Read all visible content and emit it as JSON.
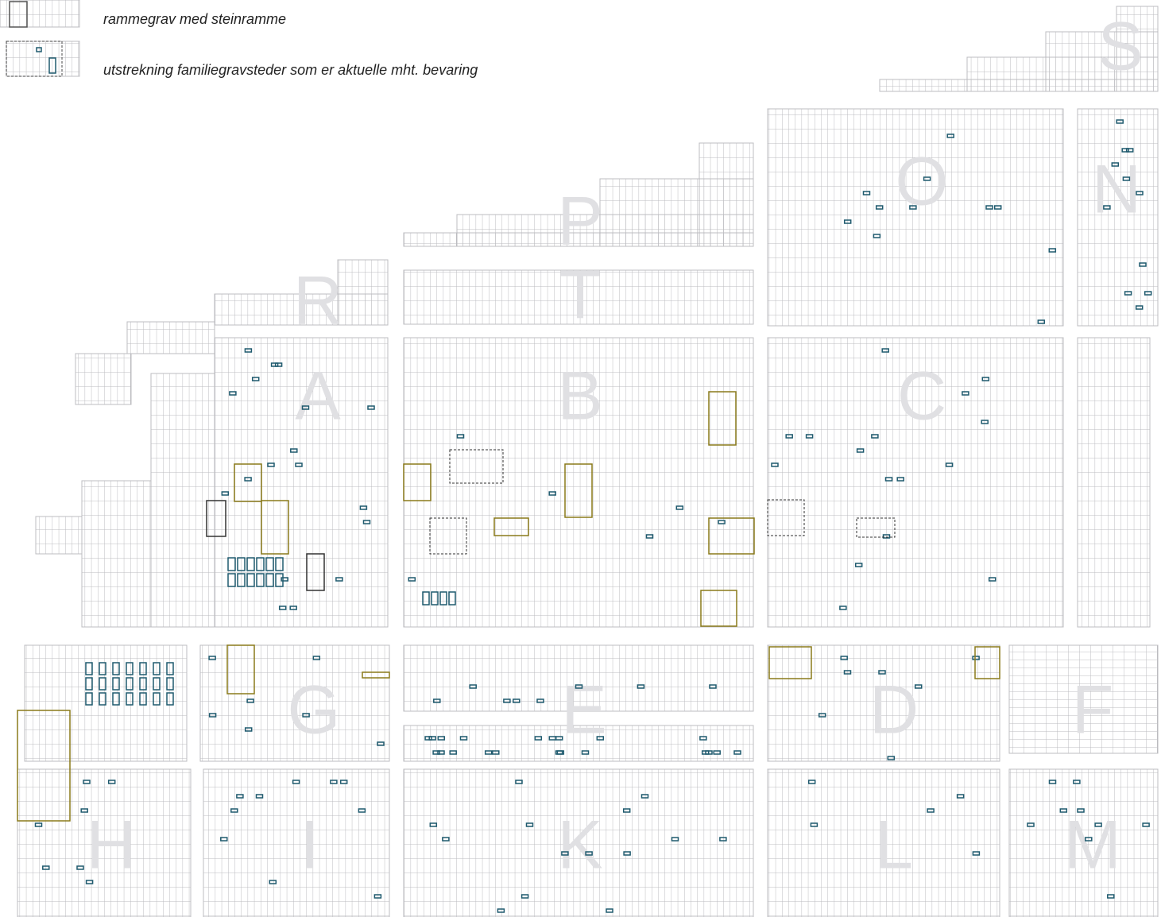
{
  "legend": [
    {
      "label": "rammegrav med steinramme"
    },
    {
      "label": "utstrekning familiegravsteder som er aktuelle mht. bevaring"
    }
  ],
  "sections": [
    "S",
    "O",
    "N",
    "P",
    "T",
    "R",
    "A",
    "B",
    "C",
    "G",
    "E",
    "D",
    "F",
    "H",
    "I",
    "K",
    "L",
    "M"
  ]
}
